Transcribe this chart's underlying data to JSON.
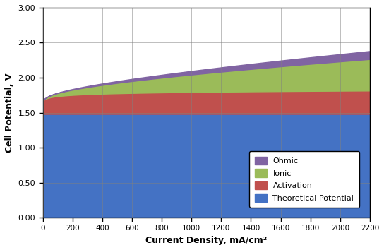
{
  "x_max": 2200,
  "x_min": 0,
  "y_min": 0.0,
  "y_max": 3.0,
  "theoretical_potential": 1.48,
  "xlabel": "Current Density, mA/cm²",
  "ylabel": "Cell Potential, V",
  "yticks": [
    0.0,
    0.5,
    1.0,
    1.5,
    2.0,
    2.5,
    3.0
  ],
  "xticks": [
    0,
    200,
    400,
    600,
    800,
    1000,
    1200,
    1400,
    1600,
    1800,
    2000,
    2200
  ],
  "color_theoretical": "#4472C4",
  "color_activation": "#C0504D",
  "color_ionic": "#9BBB59",
  "color_ohmic": "#8064A2",
  "act_at_0": 0.185,
  "act_at_max": 0.335,
  "act_log_k": 8.0,
  "ionic_max": 0.45,
  "ohmic_max": 0.115
}
